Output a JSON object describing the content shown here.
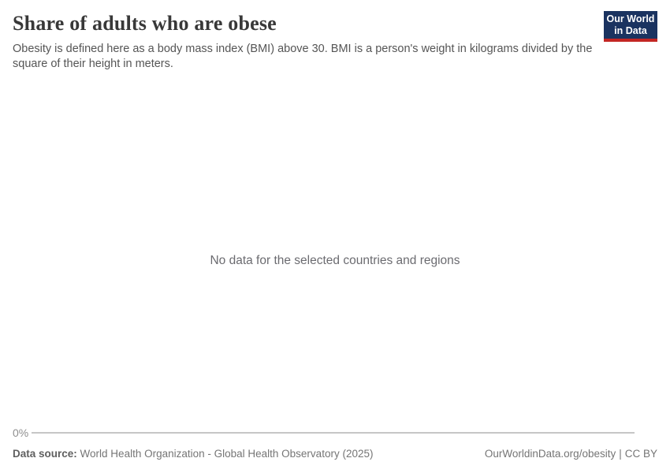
{
  "header": {
    "title": "Share of adults who are obese",
    "subtitle": "Obesity is defined here as a body mass index (BMI) above 30. BMI is a person's weight in kilograms divided by the square of their height in meters.",
    "logo": {
      "line1": "Our World",
      "line2": "in Data",
      "bg_color": "#1a3360",
      "accent_color": "#c32623",
      "text_color": "#ffffff"
    }
  },
  "chart_data": {
    "type": "line",
    "title": "Share of adults who are obese",
    "categories": [],
    "series": [],
    "empty_message": "No data for the selected countries and regions",
    "y_axis": {
      "tick_labels": [
        "0%"
      ],
      "unit": "%"
    },
    "x_axis": {
      "tick_labels": []
    },
    "legend": "none",
    "grid": false
  },
  "footer": {
    "source_label": "Data source:",
    "source_value": "World Health Organization - Global Health Observatory (2025)",
    "link_url": "OurWorldinData.org/obesity",
    "separator": "|",
    "license": "CC BY"
  }
}
